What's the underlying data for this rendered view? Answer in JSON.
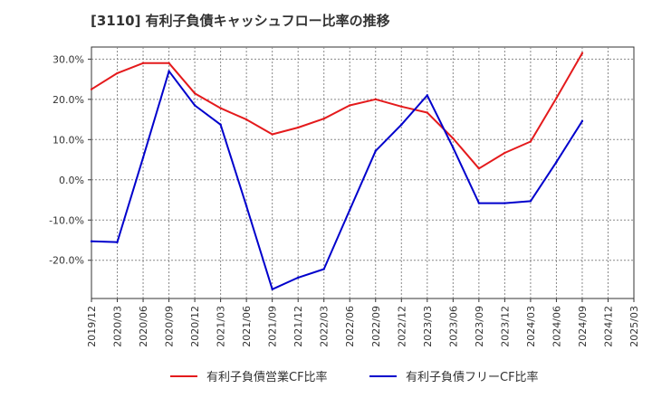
{
  "chart_data": {
    "type": "line",
    "title": "[3110]  有利子負債キャッシュフロー比率の推移",
    "xlabel": "",
    "ylabel": "",
    "categories": [
      "2019/12",
      "2020/03",
      "2020/06",
      "2020/09",
      "2020/12",
      "2021/03",
      "2021/06",
      "2021/09",
      "2021/12",
      "2022/03",
      "2022/06",
      "2022/09",
      "2022/12",
      "2023/03",
      "2023/06",
      "2023/09",
      "2023/12",
      "2024/03",
      "2024/06",
      "2024/09",
      "2024/12",
      "2025/03"
    ],
    "ylim": [
      -29.5,
      33.0
    ],
    "yticks": [
      30,
      20,
      10,
      0,
      -10,
      -20
    ],
    "ytick_labels": [
      "30.0%",
      "20.0%",
      "10.0%",
      "0.0%",
      "-10.0%",
      "-20.0%"
    ],
    "grid": true,
    "legend_position": "bottom",
    "series": [
      {
        "name": "有利子負債営業CF比率",
        "color": "#e41a1c",
        "values": [
          22.5,
          26.5,
          29.0,
          29.0,
          21.5,
          17.8,
          15.0,
          11.3,
          13.0,
          15.2,
          18.5,
          20.0,
          18.2,
          16.7,
          10.3,
          2.8,
          6.7,
          9.5,
          20.3,
          31.5,
          null,
          null
        ]
      },
      {
        "name": "有利子負債フリーCF比率",
        "color": "#0000cc",
        "values": [
          -15.3,
          -15.5,
          5.5,
          27.0,
          18.5,
          13.7,
          -6.5,
          -27.2,
          -24.3,
          -22.2,
          -7.5,
          7.2,
          13.7,
          21.0,
          8.0,
          -5.8,
          -5.8,
          -5.3,
          4.4,
          14.6,
          null,
          null
        ]
      }
    ]
  }
}
